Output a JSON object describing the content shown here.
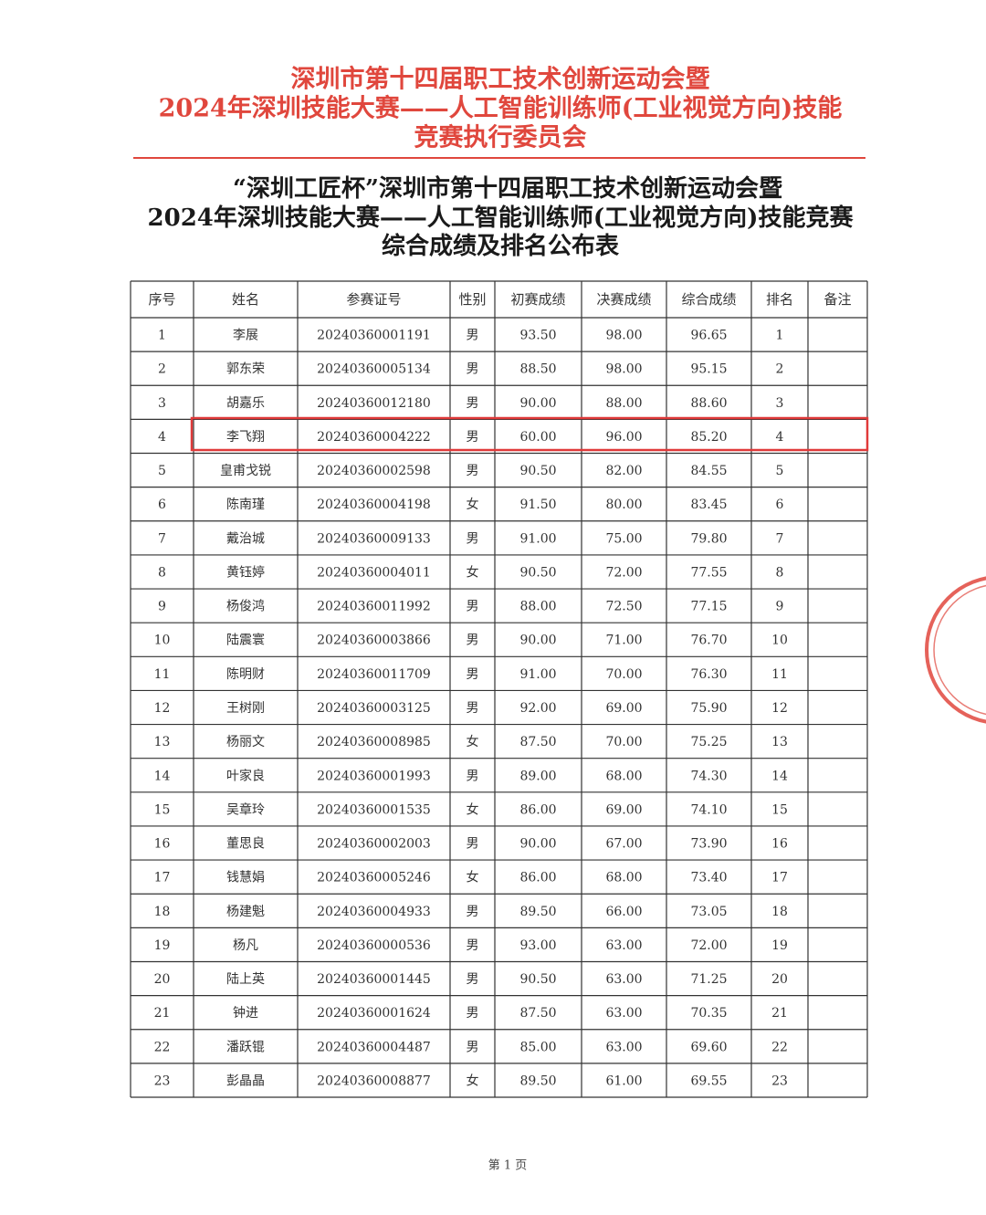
{
  "header": {
    "title_lines": [
      "深圳市第十四届职工技术创新运动会暨",
      "2024年深圳技能大赛——人工智能训练师(工业视觉方向)技能",
      "竞赛执行委员会"
    ]
  },
  "document": {
    "title_lines": [
      "“深圳工匠杯”深圳市第十四届职工技术创新运动会暨",
      "2024年深圳技能大赛——人工智能训练师(工业视觉方向)技能竞赛",
      "综合成绩及排名公布表"
    ]
  },
  "table": {
    "columns": [
      "序号",
      "姓名",
      "参赛证号",
      "性别",
      "初赛成绩",
      "决赛成绩",
      "综合成绩",
      "排名",
      "备注"
    ],
    "rows": [
      [
        "1",
        "李展",
        "20240360001191",
        "男",
        "93.50",
        "98.00",
        "96.65",
        "1"
      ],
      [
        "2",
        "郭东荣",
        "20240360005134",
        "男",
        "88.50",
        "98.00",
        "95.15",
        "2"
      ],
      [
        "3",
        "胡嘉乐",
        "20240360012180",
        "男",
        "90.00",
        "88.00",
        "88.60",
        "3"
      ],
      [
        "4",
        "李飞翔",
        "20240360004222",
        "男",
        "60.00",
        "96.00",
        "85.20",
        "4"
      ],
      [
        "5",
        "皇甫戈锐",
        "20240360002598",
        "男",
        "90.50",
        "82.00",
        "84.55",
        "5"
      ],
      [
        "6",
        "陈南瑾",
        "20240360004198",
        "女",
        "91.50",
        "80.00",
        "83.45",
        "6"
      ],
      [
        "7",
        "戴治城",
        "20240360009133",
        "男",
        "91.00",
        "75.00",
        "79.80",
        "7"
      ],
      [
        "8",
        "黄钰婷",
        "20240360004011",
        "女",
        "90.50",
        "72.00",
        "77.55",
        "8"
      ],
      [
        "9",
        "杨俊鸿",
        "20240360011992",
        "男",
        "88.00",
        "72.50",
        "77.15",
        "9"
      ],
      [
        "10",
        "陆震寰",
        "20240360003866",
        "男",
        "90.00",
        "71.00",
        "76.70",
        "10"
      ],
      [
        "11",
        "陈明财",
        "20240360011709",
        "男",
        "91.00",
        "70.00",
        "76.30",
        "11"
      ],
      [
        "12",
        "王树刚",
        "20240360003125",
        "男",
        "92.00",
        "69.00",
        "75.90",
        "12"
      ],
      [
        "13",
        "杨丽文",
        "20240360008985",
        "女",
        "87.50",
        "70.00",
        "75.25",
        "13"
      ],
      [
        "14",
        "叶家良",
        "20240360001993",
        "男",
        "89.00",
        "68.00",
        "74.30",
        "14"
      ],
      [
        "15",
        "吴章玲",
        "20240360001535",
        "女",
        "86.00",
        "69.00",
        "74.10",
        "15"
      ],
      [
        "16",
        "董思良",
        "20240360002003",
        "男",
        "90.00",
        "67.00",
        "73.90",
        "16"
      ],
      [
        "17",
        "钱慧娟",
        "20240360005246",
        "女",
        "86.00",
        "68.00",
        "73.40",
        "17"
      ],
      [
        "18",
        "杨建魁",
        "20240360004933",
        "男",
        "89.50",
        "66.00",
        "73.05",
        "18"
      ],
      [
        "19",
        "杨凡",
        "20240360000536",
        "男",
        "93.00",
        "63.00",
        "72.00",
        "19"
      ],
      [
        "20",
        "陆上英",
        "20240360001445",
        "男",
        "90.50",
        "63.00",
        "71.25",
        "20"
      ],
      [
        "21",
        "钟进",
        "20240360001624",
        "男",
        "87.50",
        "63.00",
        "70.35",
        "21"
      ],
      [
        "22",
        "潘跃锟",
        "20240360004487",
        "男",
        "85.00",
        "63.00",
        "69.60",
        "22"
      ],
      [
        "23",
        "彭晶晶",
        "20240360008877",
        "女",
        "89.50",
        "61.00",
        "69.55",
        "23"
      ]
    ]
  },
  "footer": {
    "page_label": "第 1 页"
  }
}
